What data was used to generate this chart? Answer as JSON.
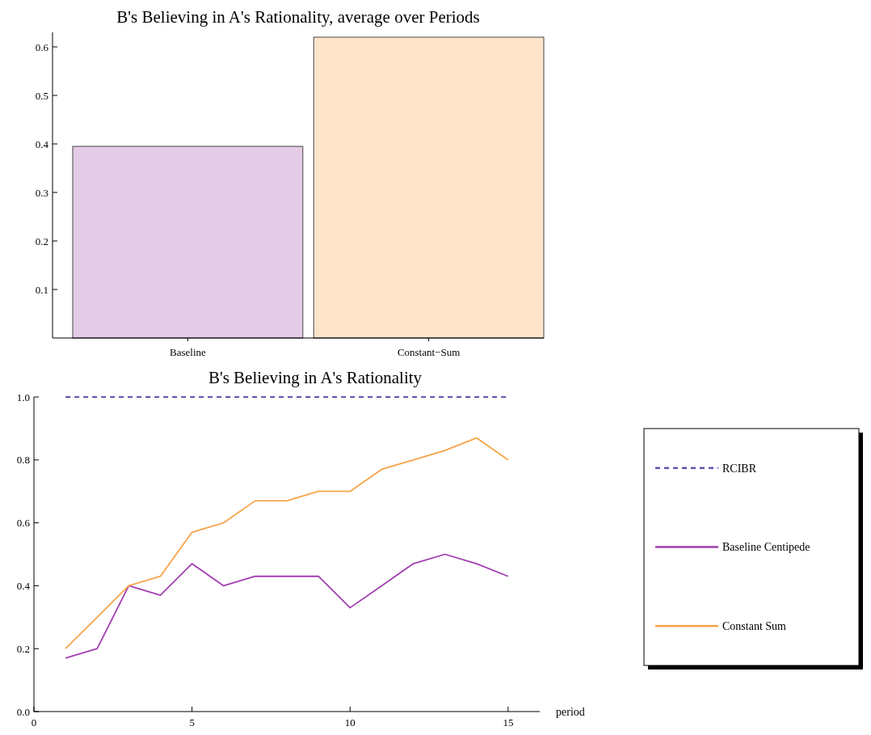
{
  "chart_data": [
    {
      "type": "bar",
      "title": "B's Believing in A's Rationality, average over Periods",
      "categories": [
        "Baseline",
        "Constant−Sum"
      ],
      "values": [
        0.395,
        0.62
      ],
      "colors": [
        "#e4cce6",
        "#fde4cb"
      ],
      "ylim": [
        0,
        0.63
      ],
      "yticks": [
        0.1,
        0.2,
        0.3,
        0.4,
        0.5,
        0.6
      ],
      "grid": false,
      "legend": false
    },
    {
      "type": "line",
      "title": "B's Believing in A's Rationality",
      "xlabel": "period",
      "xlim": [
        0,
        16
      ],
      "xticks": [
        0,
        5,
        10,
        15
      ],
      "ylim": [
        0,
        1
      ],
      "yticks": [
        {
          "value": 0,
          "label": "0.0"
        },
        0.2,
        0.4,
        0.6,
        0.8,
        {
          "value": 1,
          "label": "1.0"
        }
      ],
      "grid": false,
      "legend": "right",
      "series": [
        {
          "name": "RCIBR",
          "color": "#5b57b0",
          "line_style": "dashed",
          "x": [
            1,
            15
          ],
          "values": [
            1,
            1
          ]
        },
        {
          "name": "Baseline Centipede",
          "color": "#a13fb0",
          "line_style": "solid",
          "x": [
            1,
            2,
            3,
            4,
            5,
            6,
            7,
            8,
            9,
            10,
            11,
            12,
            13,
            14,
            15
          ],
          "values": [
            0.17,
            0.2,
            0.4,
            0.37,
            0.47,
            0.4,
            0.43,
            0.43,
            0.43,
            0.33,
            0.4,
            0.47,
            0.5,
            0.47,
            0.43
          ]
        },
        {
          "name": "Constant Sum",
          "color": "#f7a44a",
          "line_style": "solid",
          "x": [
            1,
            2,
            3,
            4,
            5,
            6,
            7,
            8,
            9,
            10,
            11,
            12,
            13,
            14,
            15
          ],
          "values": [
            0.2,
            0.3,
            0.4,
            0.43,
            0.57,
            0.6,
            0.67,
            0.67,
            0.7,
            0.7,
            0.77,
            0.8,
            0.83,
            0.87,
            0.8
          ]
        }
      ]
    }
  ]
}
